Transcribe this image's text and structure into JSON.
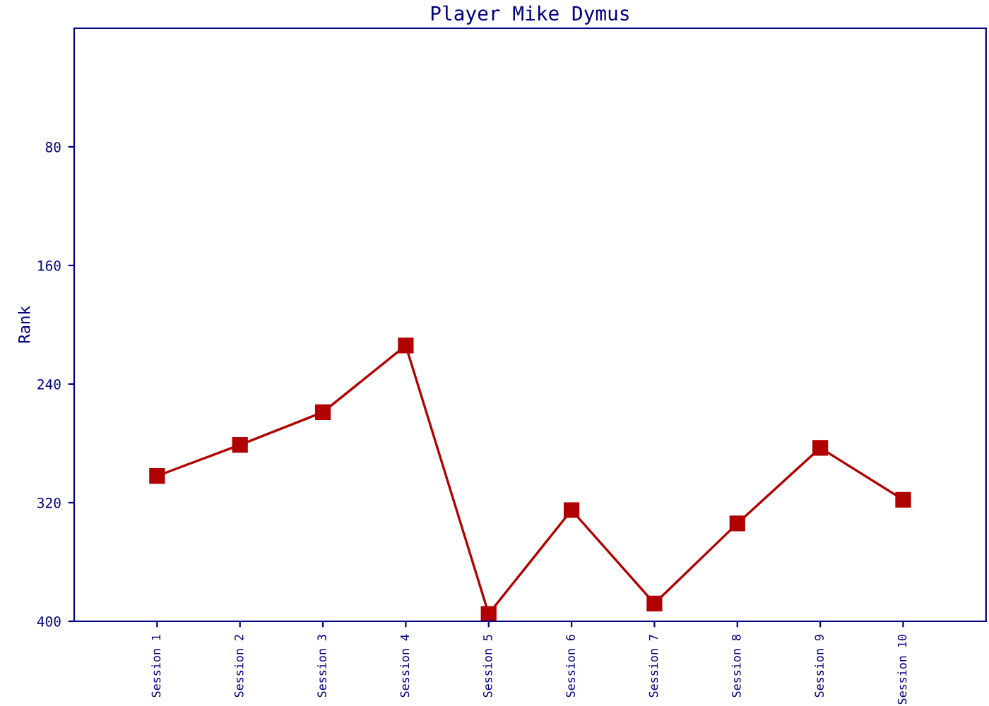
{
  "chart_data": {
    "type": "line",
    "title": "Player Mike Dymus",
    "ylabel": "Rank",
    "categories": [
      "Session 1",
      "Session 2",
      "Session 3",
      "Session 4",
      "Session 5",
      "Session 6",
      "Session 7",
      "Session 8",
      "Session 9",
      "Session 10"
    ],
    "series": [
      {
        "color": "#b00000",
        "values": [
          302,
          281,
          259,
          214,
          395,
          325,
          388,
          334,
          283,
          318
        ]
      }
    ],
    "ylim": [
      400,
      0
    ],
    "yticks": [
      80,
      160,
      240,
      320,
      400
    ],
    "grid": false,
    "marker": "square",
    "line_style": "solid"
  }
}
